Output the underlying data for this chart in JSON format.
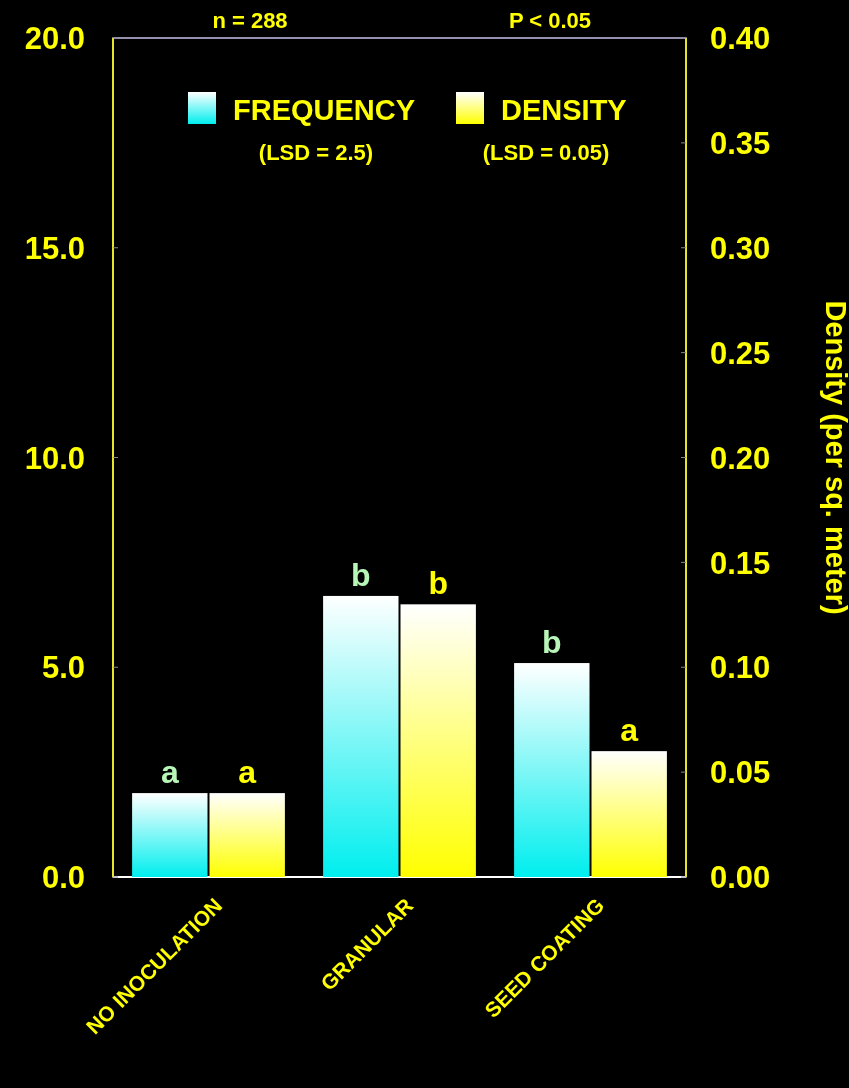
{
  "chart_data": {
    "type": "bar",
    "y2label": "Density (per sq. meter)",
    "categories": [
      "NO INOCULATION",
      "GRANULAR",
      "SEED COATING"
    ],
    "series": [
      {
        "name": "FREQUENCY",
        "color": "#00eeee",
        "values": [
          2.0,
          6.7,
          5.1
        ],
        "value_labels": [
          "a",
          "b",
          "b"
        ]
      },
      {
        "name": "DENSITY",
        "color": "#ffff00",
        "values": [
          0.04,
          0.13,
          0.06
        ],
        "value_labels": [
          "a",
          "b",
          "a"
        ],
        "axis": "y2"
      }
    ],
    "ylim": [
      0,
      20
    ],
    "yticks": [
      {
        "value": 0,
        "label": "0.0"
      },
      {
        "value": 5,
        "label": "5.0"
      },
      {
        "value": 10,
        "label": "10.0"
      },
      {
        "value": 15,
        "label": "15.0"
      },
      {
        "value": 20,
        "label": "20.0"
      }
    ],
    "y2lim": [
      0,
      0.4
    ],
    "y2ticks": [
      {
        "value": 0,
        "label": "0.00"
      },
      {
        "value": 0.05,
        "label": "0.05"
      },
      {
        "value": 0.1,
        "label": "0.10"
      },
      {
        "value": 0.15,
        "label": "0.15"
      },
      {
        "value": 0.2,
        "label": "0.20"
      },
      {
        "value": 0.25,
        "label": "0.25"
      },
      {
        "value": 0.3,
        "label": "0.30"
      },
      {
        "value": 0.35,
        "label": "0.35"
      },
      {
        "value": 0.4,
        "label": "0.40"
      }
    ],
    "legend": "top",
    "annotations": [
      "n = 288",
      "P < 0.05",
      "(LSD = 2.5)",
      "(LSD = 0.05)"
    ]
  }
}
